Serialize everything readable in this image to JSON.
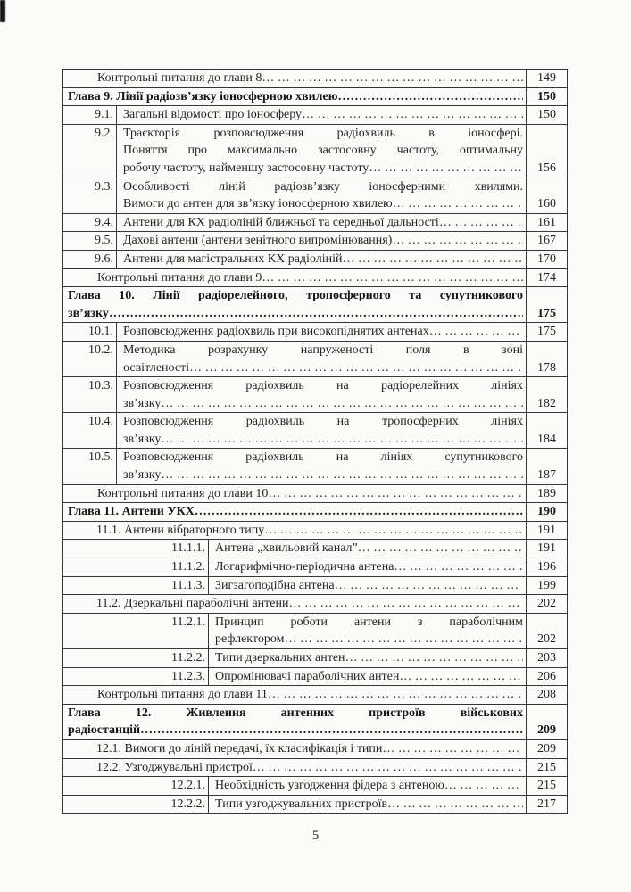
{
  "page": {
    "footer_page_number": "5",
    "colors": {
      "paper": "#fbfbf9",
      "text": "#242424",
      "border": "#373737"
    }
  },
  "leaders": {
    "normal": "… … … … … … … … … … … … … … … … … … … … … … … … … … … … … … … … … … … … … … … … … … … … … … … …",
    "chapter": "……………………………………………………………………………………………………………………………………………………………………………………"
  },
  "toc": {
    "rows": [
      {
        "style": "control",
        "num": "",
        "lines": [
          "Контрольні питання до глави 8"
        ],
        "page": "149"
      },
      {
        "style": "chapter",
        "num": "",
        "lines": [
          "Глава 9. Лінії радіозв’язку іоносферною хвилею"
        ],
        "page": "150"
      },
      {
        "style": "sub1",
        "num": "9.1.",
        "lines": [
          "Загальні відомості про іоносферу"
        ],
        "page": "150"
      },
      {
        "style": "sub1",
        "num": "9.2.",
        "lines": [
          "Траєкторія розповсюдження радіохвиль в іоносфері.",
          "Поняття про максимально застосовну частоту, оптимальну",
          "робочу частоту, найменшу застосовну частоту"
        ],
        "page": "156"
      },
      {
        "style": "sub1",
        "num": "9.3.",
        "lines": [
          "Особливості ліній радіозв’язку іоносферними хвилями.",
          "Вимоги до антен для зв’язку іоносферною хвилею"
        ],
        "page": "160"
      },
      {
        "style": "sub1",
        "num": "9.4.",
        "lines": [
          "Антени для КХ радіоліній ближньої та середньої дальності"
        ],
        "page": "161"
      },
      {
        "style": "sub1",
        "num": "9.5.",
        "lines": [
          "Дахові антени (антени зенітного випромінювання)"
        ],
        "page": "167"
      },
      {
        "style": "sub1",
        "num": "9.6.",
        "lines": [
          "Антени для магістральних КХ радіоліній"
        ],
        "page": "170"
      },
      {
        "style": "control",
        "num": "",
        "lines": [
          "Контрольні питання до глави 9"
        ],
        "page": "174"
      },
      {
        "style": "chapter",
        "num": "",
        "lines": [
          "Глава 10. Лінії радіорелейного, тропосферного та супутникового",
          "зв’язку"
        ],
        "page": "175"
      },
      {
        "style": "sub1",
        "num": "10.1.",
        "lines": [
          "Розповсюдження радіохвиль при високопіднятих антенах"
        ],
        "page": "175"
      },
      {
        "style": "sub1",
        "num": "10.2.",
        "lines": [
          "Методика розрахунку напруженості поля в зоні",
          "освітленості"
        ],
        "page": "178"
      },
      {
        "style": "sub1",
        "num": "10.3.",
        "lines": [
          "Розповсюдження радіохвиль на радіорелейних лініях",
          "зв’язку"
        ],
        "page": "182"
      },
      {
        "style": "sub1",
        "num": "10.4.",
        "lines": [
          "Розповсюдження радіохвиль на тропосферних лініях",
          "зв’язку"
        ],
        "page": "184"
      },
      {
        "style": "sub1",
        "num": "10.5.",
        "lines": [
          "Розповсюдження радіохвиль на лініях супутникового",
          "зв’язку"
        ],
        "page": "187"
      },
      {
        "style": "control",
        "num": "",
        "lines": [
          "Контрольні питання до глави 10"
        ],
        "page": "189"
      },
      {
        "style": "chapter",
        "num": "",
        "lines": [
          "Глава 11. Антени УКХ"
        ],
        "page": "190"
      },
      {
        "style": "sub2",
        "num": "11.1.",
        "lines": [
          "Антени вібраторного типу"
        ],
        "page": "191"
      },
      {
        "style": "sub3",
        "num": "11.1.1.",
        "lines": [
          "Антена „хвильовий канал”"
        ],
        "page": "191"
      },
      {
        "style": "sub3",
        "num": "11.1.2.",
        "lines": [
          "Логарифмічно-періодична антена"
        ],
        "page": "196"
      },
      {
        "style": "sub3",
        "num": "11.1.3.",
        "lines": [
          "Зигзагоподібна антена"
        ],
        "page": "199"
      },
      {
        "style": "sub2",
        "num": "11.2.",
        "lines": [
          "Дзеркальні параболічні антени"
        ],
        "page": "202"
      },
      {
        "style": "sub3",
        "num": "11.2.1.",
        "lines": [
          "Принцип роботи антени з параболічним",
          "рефлектором"
        ],
        "page": "202"
      },
      {
        "style": "sub3",
        "num": "11.2.2.",
        "lines": [
          "Типи дзеркальних антен"
        ],
        "page": "203"
      },
      {
        "style": "sub3",
        "num": "11.2.3.",
        "lines": [
          "Опромінювачі параболічних антен"
        ],
        "page": "206"
      },
      {
        "style": "control",
        "num": "",
        "lines": [
          "Контрольні питання до глави 11"
        ],
        "page": "208"
      },
      {
        "style": "chapter",
        "num": "",
        "lines": [
          "Глава 12. Живлення антенних пристроїв військових",
          "радіостанцій"
        ],
        "page": "209"
      },
      {
        "style": "sub2",
        "num": "12.1.",
        "lines": [
          "Вимоги до ліній передачі, їх класифікація і типи"
        ],
        "page": "209"
      },
      {
        "style": "sub2",
        "num": "12.2.",
        "lines": [
          "Узгоджувальні пристрої"
        ],
        "page": "215"
      },
      {
        "style": "sub3",
        "num": "12.2.1.",
        "lines": [
          "Необхідність узгодження фідера з антеною"
        ],
        "page": "215"
      },
      {
        "style": "sub3",
        "num": "12.2.2.",
        "lines": [
          "Типи узгоджувальних пристроїв"
        ],
        "page": "217"
      }
    ]
  }
}
